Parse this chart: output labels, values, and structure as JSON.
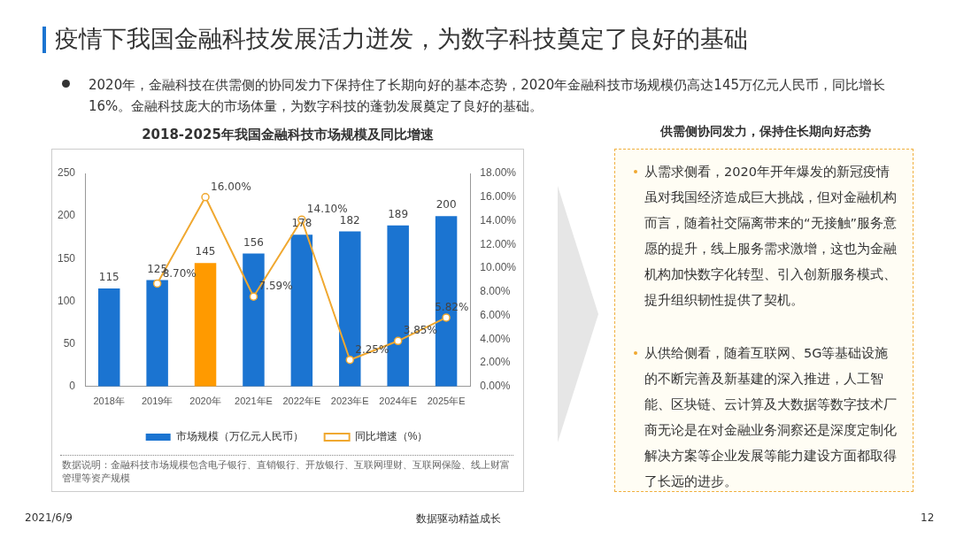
{
  "chart_data": {
    "type": "bar",
    "title": "2018-2025年我国金融科技市场规模及同比增速",
    "categories": [
      "2018年",
      "2019年",
      "2020年",
      "2021年E",
      "2022年E",
      "2023年E",
      "2024年E",
      "2025年E"
    ],
    "series": [
      {
        "name": "市场规模（万亿元人民币）",
        "color": "#1b74d1",
        "colors": [
          "#1b74d1",
          "#1b74d1",
          "#ff9a00",
          "#1b74d1",
          "#1b74d1",
          "#1b74d1",
          "#1b74d1",
          "#1b74d1"
        ],
        "values": [
          115,
          125,
          145,
          156,
          178,
          182,
          189,
          200
        ],
        "value_labels": [
          "115",
          "125",
          "145",
          "156",
          "178",
          "182",
          "189",
          "200"
        ]
      },
      {
        "name": "同比增速（%）",
        "type": "line",
        "axis": "y2",
        "color": "#f0a830",
        "values": [
          null,
          8.7,
          16,
          7.59,
          14.1,
          2.25,
          3.85,
          5.82
        ],
        "value_labels": [
          null,
          "8.70%",
          "16.00%",
          "7.59%",
          "14.10%",
          "2.25%",
          "3.85%",
          "5.82%"
        ]
      }
    ],
    "ylim": [
      0,
      250
    ],
    "yticks": [
      0,
      50,
      100,
      150,
      200,
      250
    ],
    "y2lim": [
      0,
      18
    ],
    "y2ticks": [
      {
        "value": 0,
        "label": "0.00%"
      },
      {
        "value": 2,
        "label": "2.00%"
      },
      {
        "value": 4,
        "label": "4.00%"
      },
      {
        "value": 6,
        "label": "6.00%"
      },
      {
        "value": 8,
        "label": "8.00%"
      },
      {
        "value": 10,
        "label": "10.00%"
      },
      {
        "value": 12,
        "label": "12.00%"
      },
      {
        "value": 14,
        "label": "14.00%"
      },
      {
        "value": 16,
        "label": "16.00%"
      },
      {
        "value": 18,
        "label": "18.00%"
      }
    ],
    "legend": "bottom",
    "marker": "circle",
    "annotations": [
      "疫情下我国金融科技发展活力迸发，为数字科技奠定了良好的基础",
      "2020年，金融科技在供需侧的协同发力下保持住了长期向好的基本态势，2020年金融科技市场规模仍高达145万亿元人民币，同比增长16%。金融科技庞大的市场体量，为数字科技的蓬勃发展奠定了良好的基础。",
      "供需侧协同发力，保持住长期向好态势",
      "从需求侧看，2020年开年爆发的新冠疫情虽对我国经济造成巨大挑战，但对金融机构而言，随着社交隔离带来的“无接触”服务意愿的提升，线上服务需求激增，这也为金融机构加快数字化转型、引入创新服务模式、提升组织韧性提供了契机。",
      "从供给侧看，随着互联网、5G等基础设施的不断完善及新基建的深入推进，人工智能、区块链、云计算及大数据等数字技术厂商无论是在对金融业务洞察还是深度定制化解决方案等企业发展等能力建设方面都取得了长远的进步。",
      "数据说明：金融科技市场规模包含电子银行、直销银行、开放银行、互联网理财、互联网保险、线上财富管理等资产规模",
      "2021/6/9",
      "数据驱动精益成长",
      "12"
    ]
  }
}
